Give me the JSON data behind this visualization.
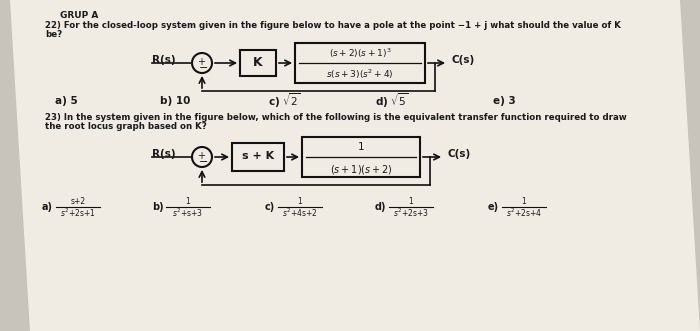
{
  "bg_color": "#c8c4bc",
  "paper_color": "#f0ece4",
  "text_color": "#1a1a1a",
  "block_fill": "#f0ece4",
  "block_edge": "#111111",
  "line_color": "#111111",
  "q22_line1": "22) For the closed-loop system given in the figure below to have a pole at the point −1 + j what should the value of K",
  "q22_line2": "be?",
  "q23_line1": "23) In the system given in the figure below, which of the following is the equivalent transfer function required to draw",
  "q23_line2": "the root locus graph based on K?",
  "grupa": "GRUP A"
}
